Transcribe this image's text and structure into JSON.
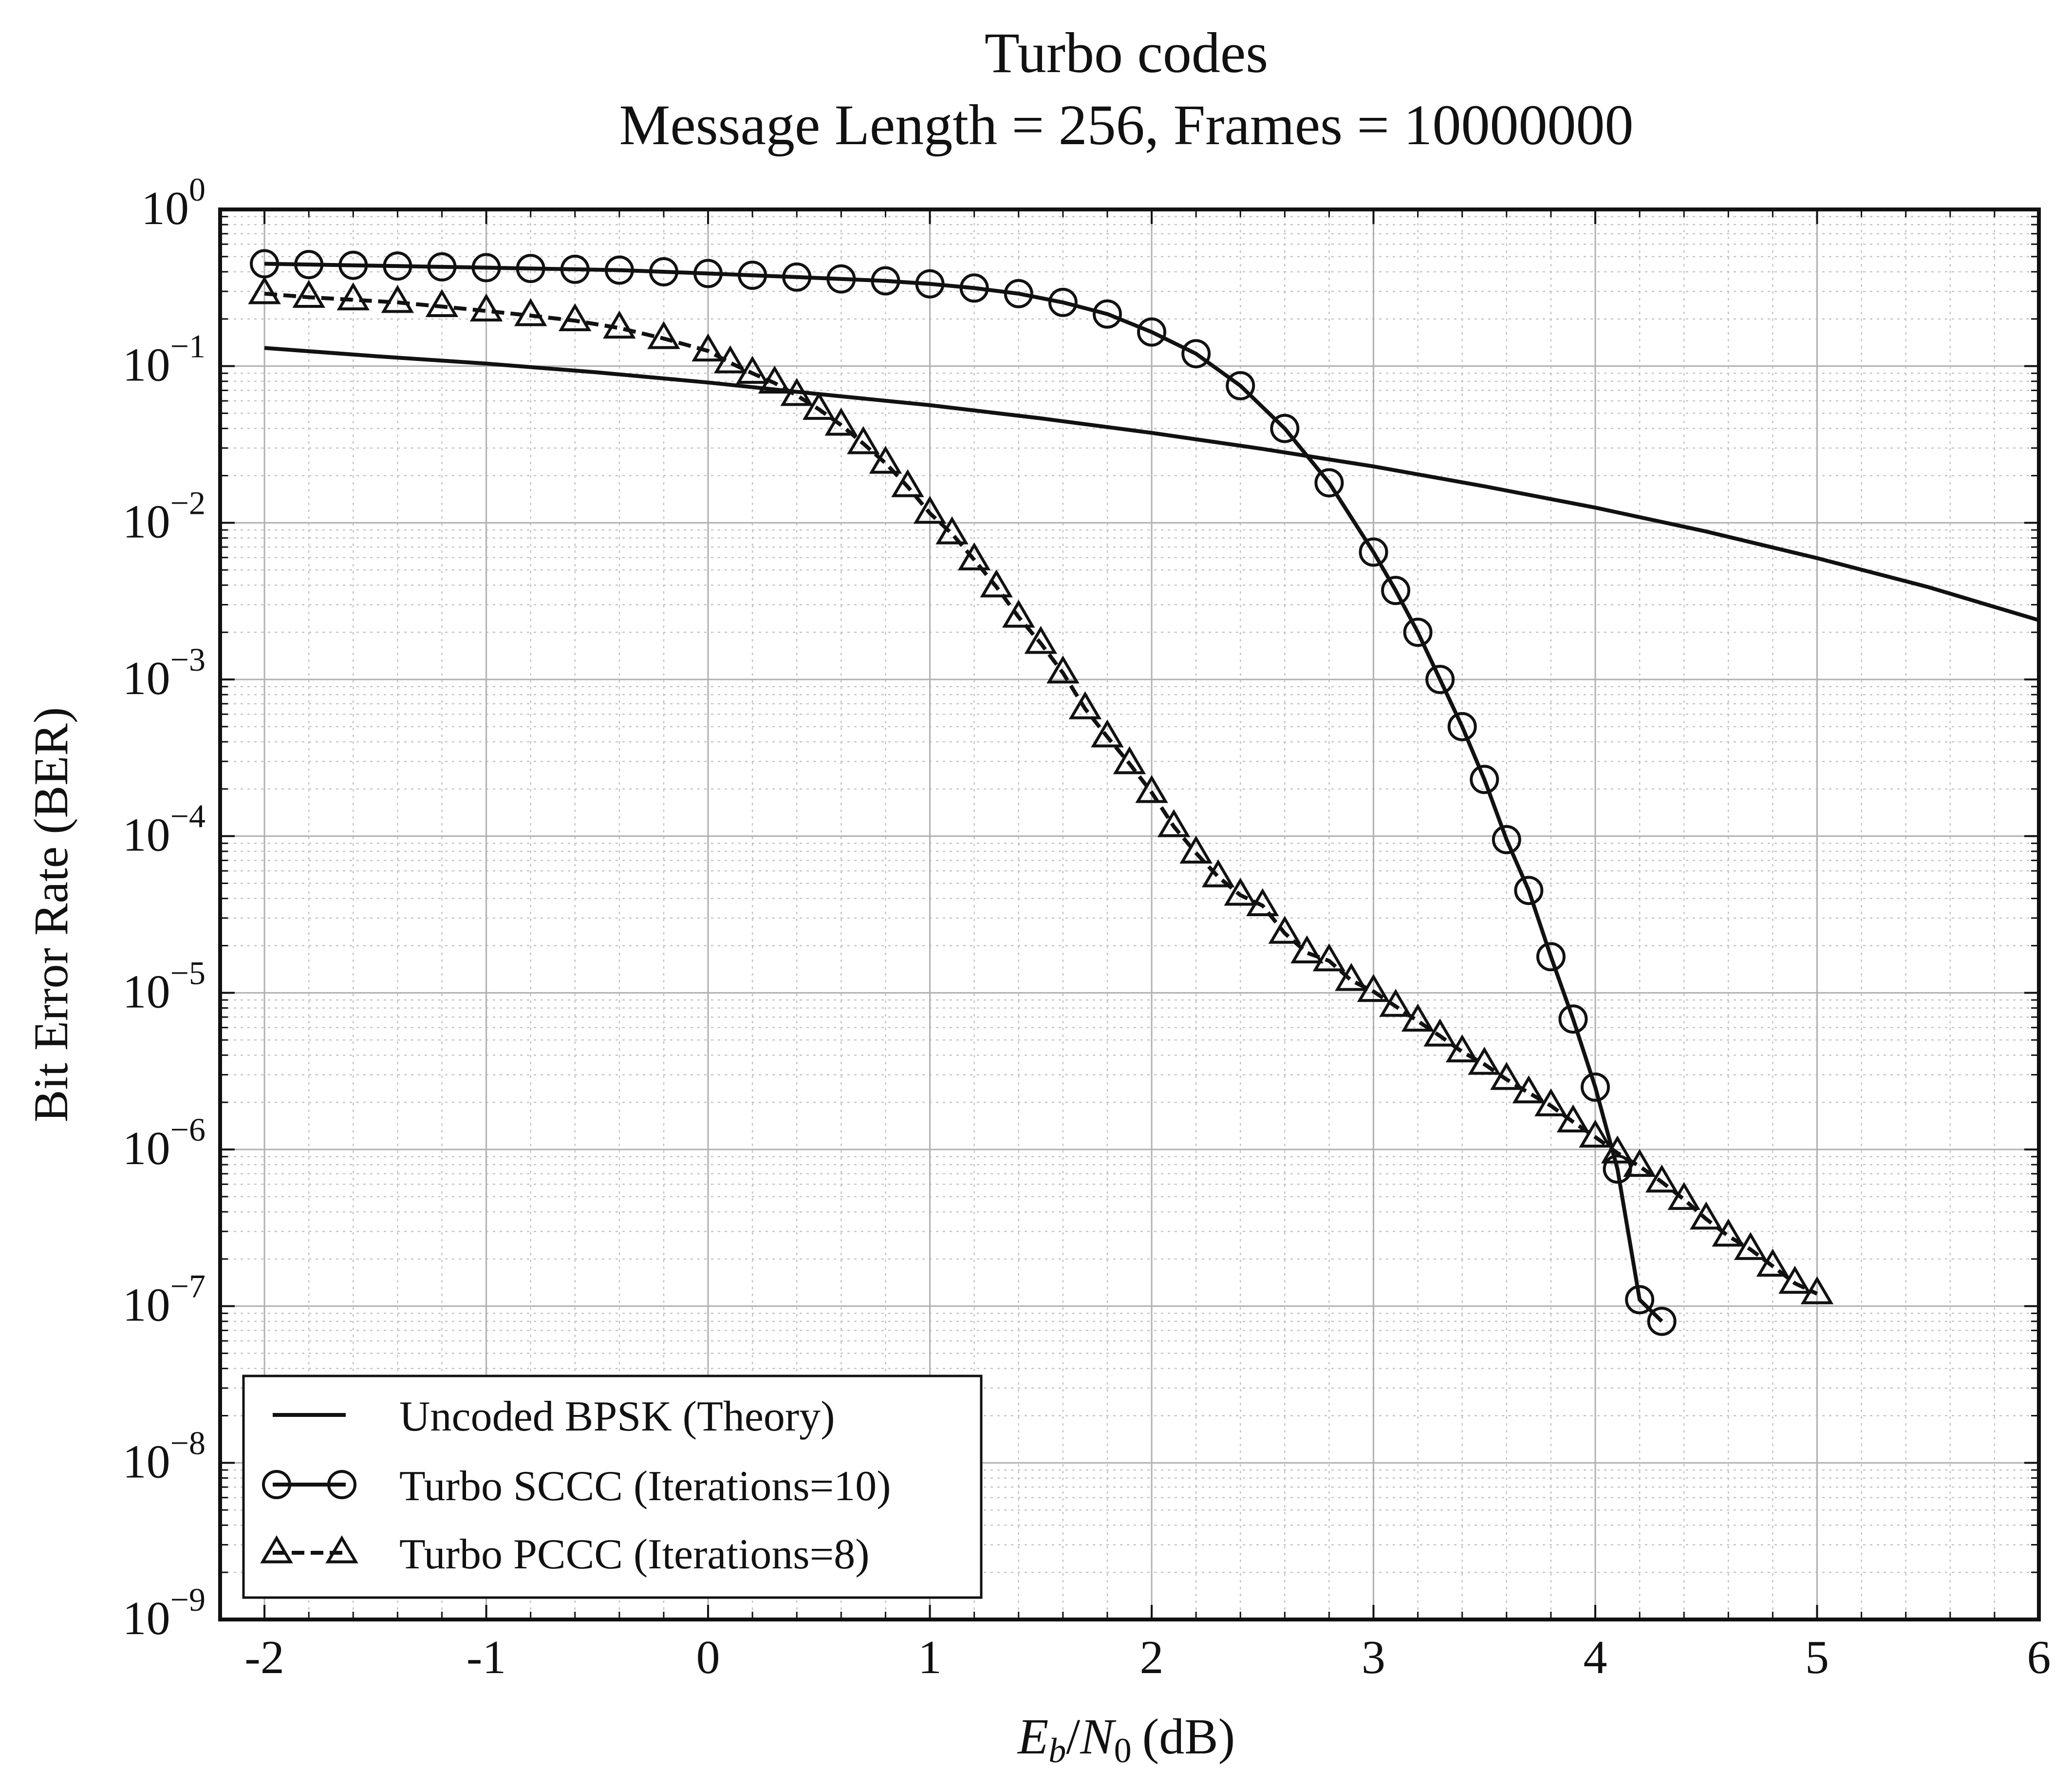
{
  "chart_data": {
    "type": "line",
    "title": "Turbo codes",
    "subtitle": "Message Length = 256, Frames = 10000000",
    "xlabel": "E_b/N_0 (dB)",
    "xlabel_parts": {
      "e": "E",
      "b": "b",
      "slash": "/",
      "n": "N",
      "zero": "0",
      "unit": "(dB)"
    },
    "ylabel": "Bit Error Rate (BER)",
    "xlim": [
      -2.2,
      6
    ],
    "ylim": [
      1e-09,
      1
    ],
    "yscale": "log",
    "grid": true,
    "legend_position": "lower-left",
    "x_ticks": [
      {
        "v": -2,
        "label": "-2"
      },
      {
        "v": -1,
        "label": "-1"
      },
      {
        "v": 0,
        "label": "0"
      },
      {
        "v": 1,
        "label": "1"
      },
      {
        "v": 2,
        "label": "2"
      },
      {
        "v": 3,
        "label": "3"
      },
      {
        "v": 4,
        "label": "4"
      },
      {
        "v": 5,
        "label": "5"
      },
      {
        "v": 6,
        "label": "6"
      }
    ],
    "y_ticks": [
      {
        "v": 1,
        "base": "10",
        "exp": "0"
      },
      {
        "v": 0.1,
        "base": "10",
        "exp": "−1"
      },
      {
        "v": 0.01,
        "base": "10",
        "exp": "−2"
      },
      {
        "v": 0.001,
        "base": "10",
        "exp": "−3"
      },
      {
        "v": 0.0001,
        "base": "10",
        "exp": "−4"
      },
      {
        "v": 1e-05,
        "base": "10",
        "exp": "−5"
      },
      {
        "v": 1e-06,
        "base": "10",
        "exp": "−6"
      },
      {
        "v": 1e-07,
        "base": "10",
        "exp": "−7"
      },
      {
        "v": 1e-08,
        "base": "10",
        "exp": "−8"
      },
      {
        "v": 1e-09,
        "base": "10",
        "exp": "−9"
      }
    ],
    "series": [
      {
        "name": "Uncoded BPSK (Theory)",
        "marker": "none",
        "line_style": "solid",
        "color": "#111111",
        "x": [
          -2,
          -1.5,
          -1,
          -0.5,
          0,
          0.5,
          1,
          1.5,
          2,
          2.5,
          3,
          3.5,
          4,
          4.5,
          5,
          5.5,
          6
        ],
        "y": [
          0.1306,
          0.1158,
          0.1038,
          0.0912,
          0.0786,
          0.0663,
          0.0563,
          0.0464,
          0.0375,
          0.0296,
          0.0229,
          0.0171,
          0.0125,
          0.0088,
          0.00595,
          0.00389,
          0.00239
        ]
      },
      {
        "name": "Turbo SCCC (Iterations=10)",
        "marker": "circle",
        "line_style": "solid",
        "color": "#111111",
        "x": [
          -2,
          -1.8,
          -1.6,
          -1.4,
          -1.2,
          -1,
          -0.8,
          -0.6,
          -0.4,
          -0.2,
          0,
          0.2,
          0.4,
          0.6,
          0.8,
          1,
          1.2,
          1.4,
          1.6,
          1.8,
          2,
          2.2,
          2.4,
          2.6,
          2.8,
          3,
          3.1,
          3.2,
          3.3,
          3.4,
          3.5,
          3.6,
          3.7,
          3.8,
          3.9,
          4,
          4.1,
          4.2,
          4.3
        ],
        "y": [
          0.45,
          0.445,
          0.44,
          0.435,
          0.43,
          0.425,
          0.42,
          0.415,
          0.41,
          0.4,
          0.39,
          0.38,
          0.37,
          0.36,
          0.35,
          0.335,
          0.315,
          0.29,
          0.255,
          0.215,
          0.165,
          0.12,
          0.075,
          0.04,
          0.018,
          0.0065,
          0.0037,
          0.002,
          0.001,
          0.0005,
          0.00023,
          9.5e-05,
          4.5e-05,
          1.7e-05,
          6.8e-06,
          2.5e-06,
          7.5e-07,
          1.1e-07,
          8e-08
        ]
      },
      {
        "name": "Turbo PCCC (Iterations=8)",
        "marker": "triangle",
        "line_style": "dashed",
        "color": "#111111",
        "x": [
          -2,
          -1.8,
          -1.6,
          -1.4,
          -1.2,
          -1,
          -0.8,
          -0.6,
          -0.4,
          -0.2,
          0,
          0.1,
          0.2,
          0.3,
          0.4,
          0.5,
          0.6,
          0.7,
          0.8,
          0.9,
          1,
          1.1,
          1.2,
          1.3,
          1.4,
          1.5,
          1.6,
          1.7,
          1.8,
          1.9,
          2,
          2.1,
          2.2,
          2.3,
          2.4,
          2.5,
          2.6,
          2.7,
          2.8,
          2.9,
          3,
          3.1,
          3.2,
          3.3,
          3.4,
          3.5,
          3.6,
          3.7,
          3.8,
          3.9,
          4,
          4.1,
          4.2,
          4.3,
          4.4,
          4.5,
          4.6,
          4.7,
          4.8,
          4.9,
          5
        ],
        "y": [
          0.29,
          0.275,
          0.265,
          0.255,
          0.24,
          0.225,
          0.21,
          0.195,
          0.175,
          0.15,
          0.125,
          0.105,
          0.09,
          0.078,
          0.065,
          0.053,
          0.042,
          0.032,
          0.024,
          0.017,
          0.0115,
          0.0085,
          0.0058,
          0.0039,
          0.0025,
          0.0017,
          0.0011,
          0.00065,
          0.00043,
          0.00029,
          0.00019,
          0.000115,
          7.8e-05,
          5.5e-05,
          4.2e-05,
          3.6e-05,
          2.4e-05,
          1.8e-05,
          1.6e-05,
          1.2e-05,
          1.02e-05,
          8.2e-06,
          6.6e-06,
          5.3e-06,
          4.2e-06,
          3.5e-06,
          2.8e-06,
          2.3e-06,
          1.9e-06,
          1.5e-06,
          1.2e-06,
          9.5e-07,
          7.8e-07,
          6.2e-07,
          4.8e-07,
          3.6e-07,
          2.8e-07,
          2.3e-07,
          1.8e-07,
          1.4e-07,
          1.2e-07
        ]
      }
    ]
  }
}
